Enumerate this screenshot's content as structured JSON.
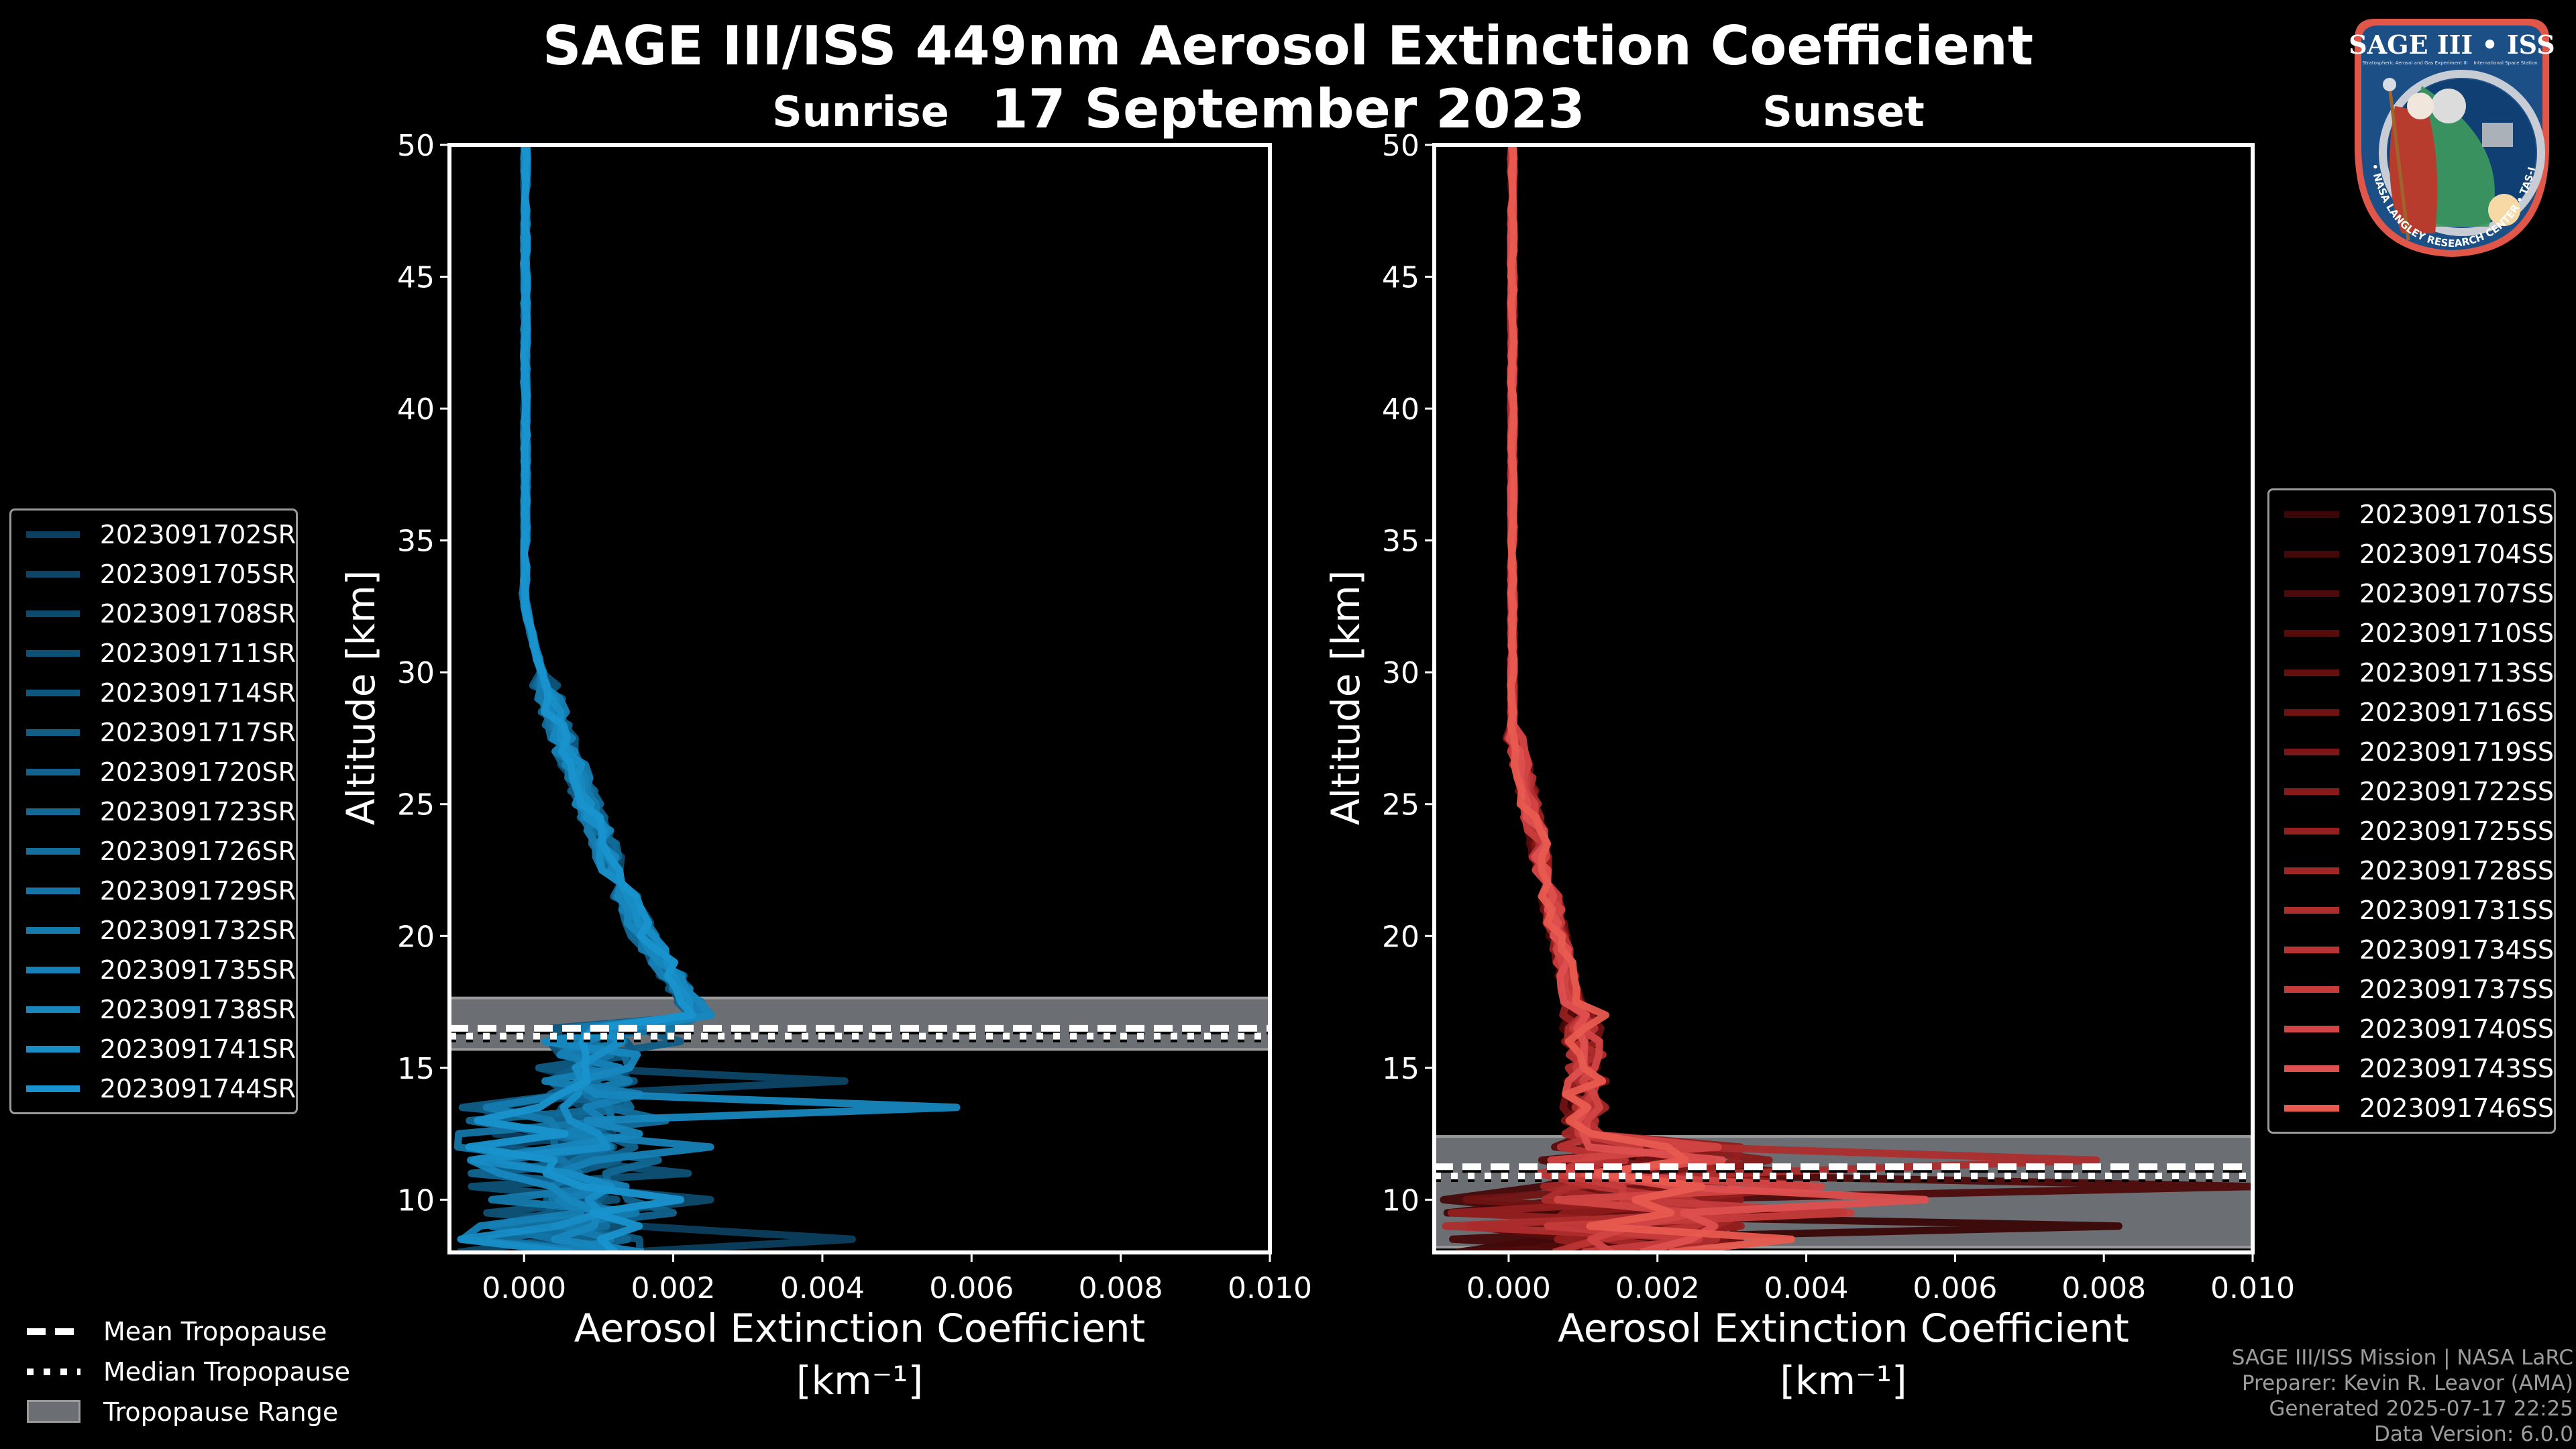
{
  "figure": {
    "title": "SAGE III/ISS 449nm Aerosol Extinction Coefficient",
    "date": "17 September 2023",
    "background": "#000000"
  },
  "logo": {
    "title": "SAGE III • ISS",
    "subtitle_left": "Stratospheric Aerosol and Gas Experiment III",
    "subtitle_right": "International Space Station",
    "ring_text": "BALL • NASA LANGLEY RESEARCH CENTER • TAS-I • ESA"
  },
  "tropopause_legend": {
    "mean": "Mean Tropopause",
    "median": "Median Tropopause",
    "range": "Tropopause Range"
  },
  "credits": {
    "line1": "SAGE III/ISS Mission | NASA LaRC",
    "line2": "Preparer: Kevin R. Leavor (AMA)",
    "line3": "Generated 2025-07-17 22:25",
    "line4": "Data Version: 6.0.0"
  },
  "chart_data": [
    {
      "type": "line",
      "panel": "sunrise",
      "title": "Sunrise",
      "xlabel": "Aerosol Extinction Coefficient",
      "xlabel_unit": "[km⁻¹]",
      "ylabel": "Altitude [km]",
      "xlim": [
        -0.001,
        0.01
      ],
      "ylim": [
        8,
        50
      ],
      "xticks": [
        "0.000",
        "0.002",
        "0.004",
        "0.006",
        "0.008",
        "0.010"
      ],
      "xtick_values": [
        0,
        0.002,
        0.004,
        0.006,
        0.008,
        0.01
      ],
      "yticks": [
        "10",
        "15",
        "20",
        "25",
        "30",
        "35",
        "40",
        "45",
        "50"
      ],
      "ytick_values": [
        10,
        15,
        20,
        25,
        30,
        35,
        40,
        45,
        50
      ],
      "grid": false,
      "legend_position": "left-outside",
      "tropopause": {
        "mean": 16.5,
        "median": 16.2,
        "range": [
          15.7,
          17.65
        ]
      },
      "series_colors": [
        "#0b3f5f",
        "#0c4566",
        "#0d4b6e",
        "#0e5176",
        "#0f577e",
        "#105d86",
        "#11638e",
        "#126996",
        "#136f9e",
        "#1475a6",
        "#157bae",
        "#1681b6",
        "#1787be",
        "#188dc6",
        "#1993ce"
      ],
      "series": [
        {
          "name": "2023091702SR",
          "peak": [
            0.0069,
            12.7
          ],
          "low_peak": [
            0.0044,
            8.5
          ]
        },
        {
          "name": "2023091705SR",
          "peak": [
            0.0043,
            14.5
          ]
        },
        {
          "name": "2023091708SR",
          "peak": [
            0.0025,
            10.1
          ]
        },
        {
          "name": "2023091711SR",
          "peak": [
            0.0022,
            11.0
          ]
        },
        {
          "name": "2023091714SR",
          "peak": [
            0.0024,
            12.0
          ]
        },
        {
          "name": "2023091717SR",
          "peak": [
            0.0021,
            16.0
          ]
        },
        {
          "name": "2023091720SR",
          "peak": [
            0.002,
            9.5
          ]
        },
        {
          "name": "2023091723SR",
          "peak": [
            0.0018,
            11.5
          ]
        },
        {
          "name": "2023091726SR",
          "peak": [
            0.0019,
            13.0
          ]
        },
        {
          "name": "2023091729SR",
          "peak": [
            0.002,
            16.3
          ]
        },
        {
          "name": "2023091732SR",
          "peak": [
            0.0022,
            18.2
          ]
        },
        {
          "name": "2023091735SR",
          "peak": [
            0.0025,
            11.9
          ]
        },
        {
          "name": "2023091738SR",
          "peak": [
            0.0058,
            13.4
          ]
        },
        {
          "name": "2023091741SR",
          "peak": [
            0.0024,
            8.7
          ]
        },
        {
          "name": "2023091744SR",
          "peak": [
            0.0021,
            9.8
          ]
        }
      ]
    },
    {
      "type": "line",
      "panel": "sunset",
      "title": "Sunset",
      "xlabel": "Aerosol Extinction Coefficient",
      "xlabel_unit": "[km⁻¹]",
      "ylabel": "Altitude [km]",
      "xlim": [
        -0.001,
        0.01
      ],
      "ylim": [
        8,
        50
      ],
      "xticks": [
        "0.000",
        "0.002",
        "0.004",
        "0.006",
        "0.008",
        "0.010"
      ],
      "xtick_values": [
        0,
        0.002,
        0.004,
        0.006,
        0.008,
        0.01
      ],
      "yticks": [
        "10",
        "15",
        "20",
        "25",
        "30",
        "35",
        "40",
        "45",
        "50"
      ],
      "ytick_values": [
        10,
        15,
        20,
        25,
        30,
        35,
        40,
        45,
        50
      ],
      "grid": false,
      "legend_position": "right-outside",
      "tropopause": {
        "mean": 11.25,
        "median": 10.9,
        "range": [
          8.2,
          12.4
        ]
      },
      "series_colors": [
        "#3a0606",
        "#440808",
        "#4e0a0a",
        "#580c0c",
        "#650f0f",
        "#711212",
        "#7d1616",
        "#8a1a1a",
        "#962020",
        "#a22626",
        "#ae2d2d",
        "#ba3434",
        "#c63c3c",
        "#d24545",
        "#de4f4f",
        "#e85a4f"
      ],
      "series": [
        {
          "name": "2023091701SS",
          "peak": [
            0.0082,
            9.2
          ]
        },
        {
          "name": "2023091704SS",
          "peak": [
            0.01,
            10.0
          ]
        },
        {
          "name": "2023091707SS",
          "peak": [
            0.01,
            10.5
          ]
        },
        {
          "name": "2023091710SS",
          "peak": [
            0.0045,
            9.6
          ]
        },
        {
          "name": "2023091713SS",
          "peak": [
            0.0038,
            10.8
          ]
        },
        {
          "name": "2023091716SS",
          "peak": [
            0.003,
            9.0
          ]
        },
        {
          "name": "2023091719SS",
          "peak": [
            0.0028,
            11.2
          ]
        },
        {
          "name": "2023091722SS",
          "peak": [
            0.0035,
            11.5
          ]
        },
        {
          "name": "2023091725SS",
          "peak": [
            0.004,
            10.3
          ]
        },
        {
          "name": "2023091728SS",
          "peak": [
            0.0032,
            9.4
          ]
        },
        {
          "name": "2023091731SS",
          "peak": [
            0.0079,
            11.6
          ]
        },
        {
          "name": "2023091734SS",
          "peak": [
            0.0025,
            8.8
          ]
        },
        {
          "name": "2023091737SS",
          "peak": [
            0.0046,
            9.7
          ]
        },
        {
          "name": "2023091740SS",
          "peak": [
            0.0042,
            10.6
          ]
        },
        {
          "name": "2023091743SS",
          "peak": [
            0.0056,
            9.9
          ]
        },
        {
          "name": "2023091746SS",
          "peak": [
            0.0038,
            8.6
          ]
        }
      ]
    }
  ]
}
